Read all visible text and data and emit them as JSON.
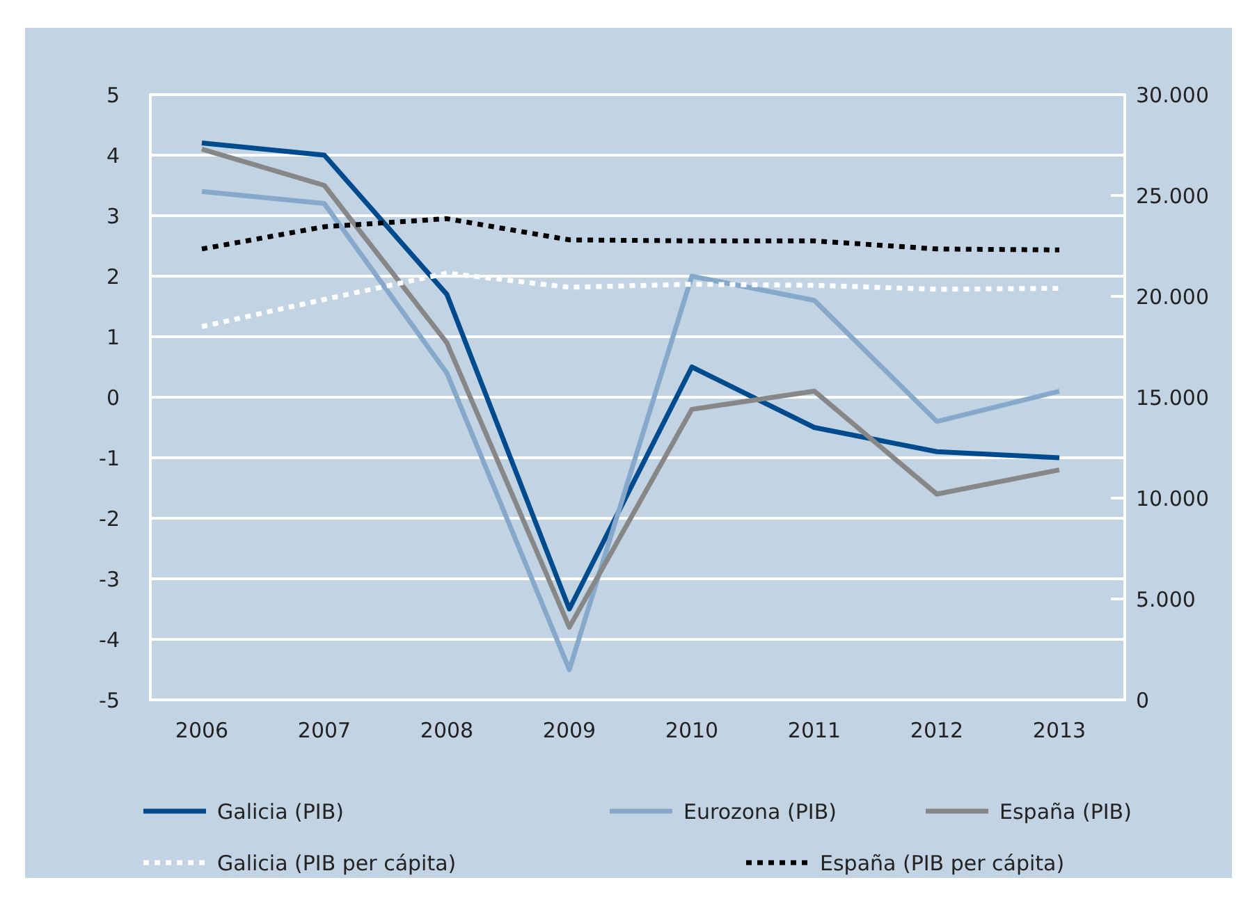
{
  "chart_data": {
    "type": "line",
    "categories": [
      "2006",
      "2007",
      "2008",
      "2009",
      "2010",
      "2011",
      "2012",
      "2013"
    ],
    "series": [
      {
        "name": "Galicia (PIB)",
        "color": "#004b8d",
        "values": [
          4.2,
          4.0,
          1.7,
          -3.5,
          0.5,
          -0.5,
          -0.9,
          -1.0
        ]
      },
      {
        "name": "Eurozona (PIB)",
        "color": "#86a9cb",
        "values": [
          3.4,
          3.2,
          0.4,
          -4.5,
          2.0,
          1.6,
          -0.4,
          0.1
        ]
      },
      {
        "name": "España (PIB)",
        "color": "#878787",
        "values": [
          4.1,
          3.5,
          0.9,
          -3.8,
          -0.2,
          0.1,
          -1.6,
          -1.2
        ]
      },
      {
        "name": "Galicia (PIB per cápita)",
        "color": "#ffffff",
        "axis": "y2",
        "line_style": "dotted",
        "values": [
          18500,
          19850,
          21150,
          20450,
          20600,
          20550,
          20350,
          20400
        ]
      },
      {
        "name": "España (PIB per cápita)",
        "color": "#000000",
        "axis": "y2",
        "line_style": "dotted",
        "values": [
          22350,
          23450,
          23850,
          22800,
          22750,
          22750,
          22350,
          22300
        ]
      }
    ],
    "ylim": [
      -5,
      5
    ],
    "yticks": [
      -5,
      -4,
      -3,
      -2,
      -1,
      0,
      1,
      2,
      3,
      4,
      5
    ],
    "y2lim": [
      0,
      30000
    ],
    "y2ticks": [
      {
        "value": 0,
        "label": "0"
      },
      {
        "value": 5000,
        "label": "5.000"
      },
      {
        "value": 10000,
        "label": "10.000"
      },
      {
        "value": 15000,
        "label": "15.000"
      },
      {
        "value": 20000,
        "label": "20.000"
      },
      {
        "value": 25000,
        "label": "25.000"
      },
      {
        "value": 30000,
        "label": "30.000"
      }
    ],
    "grid": "y",
    "legend": "bottom",
    "line_style": "solid"
  }
}
